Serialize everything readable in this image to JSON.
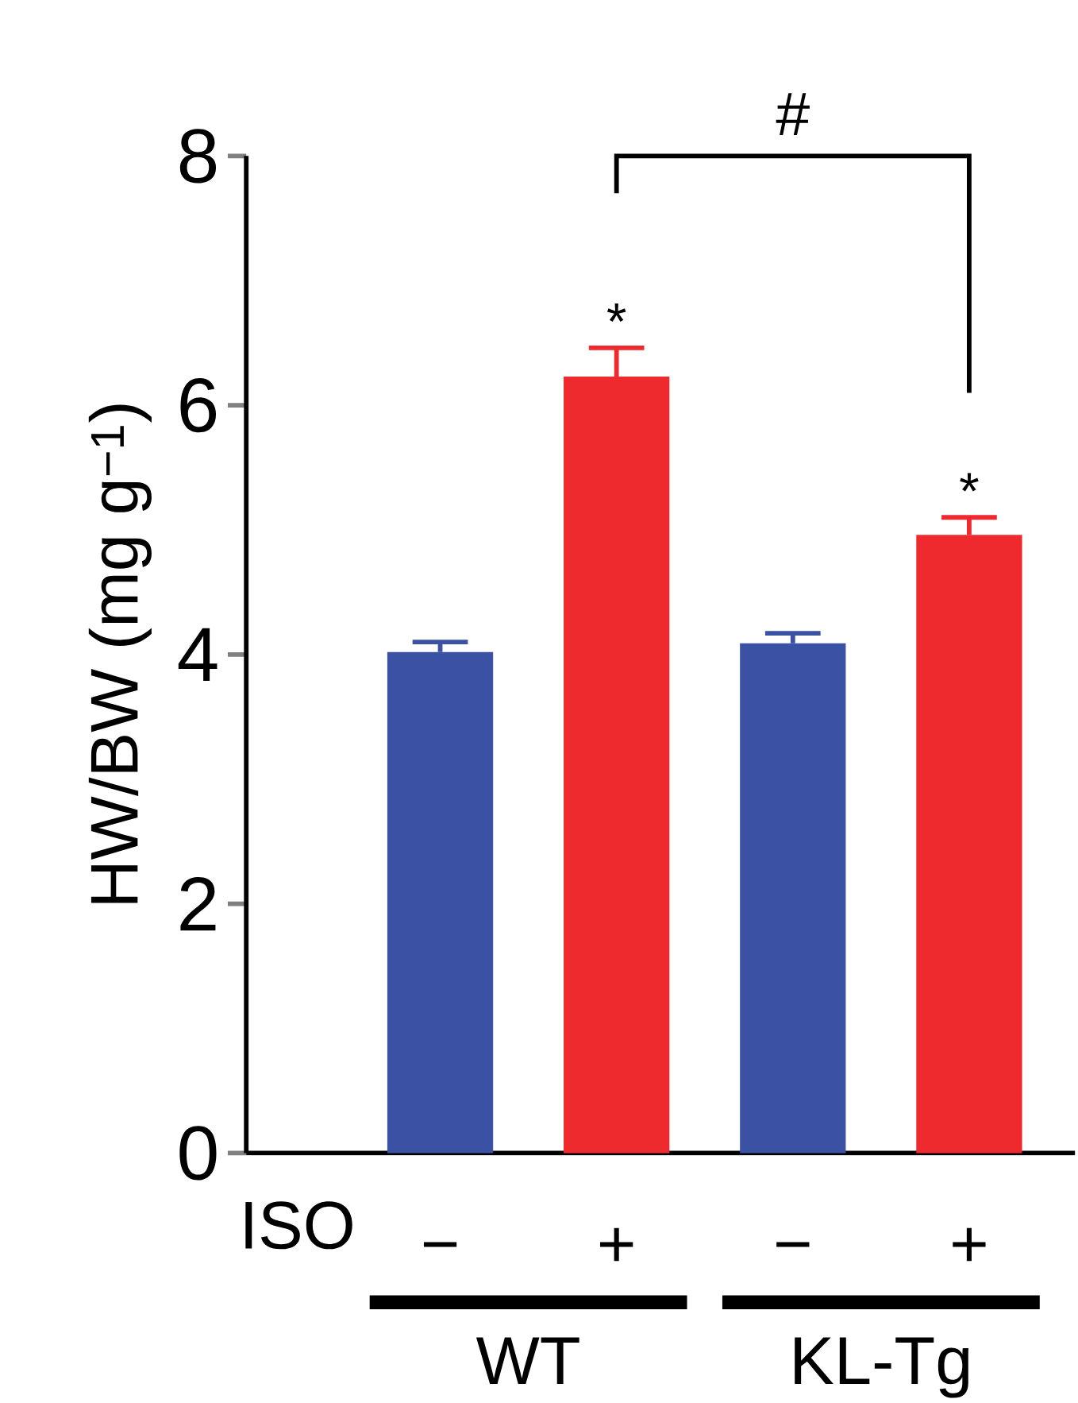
{
  "chart_data": {
    "type": "bar",
    "ylabel": "HW/BW (mg g$^{−1}$)",
    "categories": [
      "−",
      "+",
      "−",
      "+"
    ],
    "values": [
      4.02,
      6.23,
      4.09,
      4.96
    ],
    "errors": [
      0.08,
      0.23,
      0.08,
      0.14
    ],
    "colors": [
      "#3b51a3",
      "#ee2a2f",
      "#3b51a3",
      "#ee2a2f"
    ],
    "ylim": [
      0,
      8
    ],
    "yticks": [
      0,
      2,
      4,
      6,
      8
    ],
    "annotations": [
      "ISO",
      "#",
      "*",
      "*",
      "WT",
      "KL-Tg"
    ]
  }
}
